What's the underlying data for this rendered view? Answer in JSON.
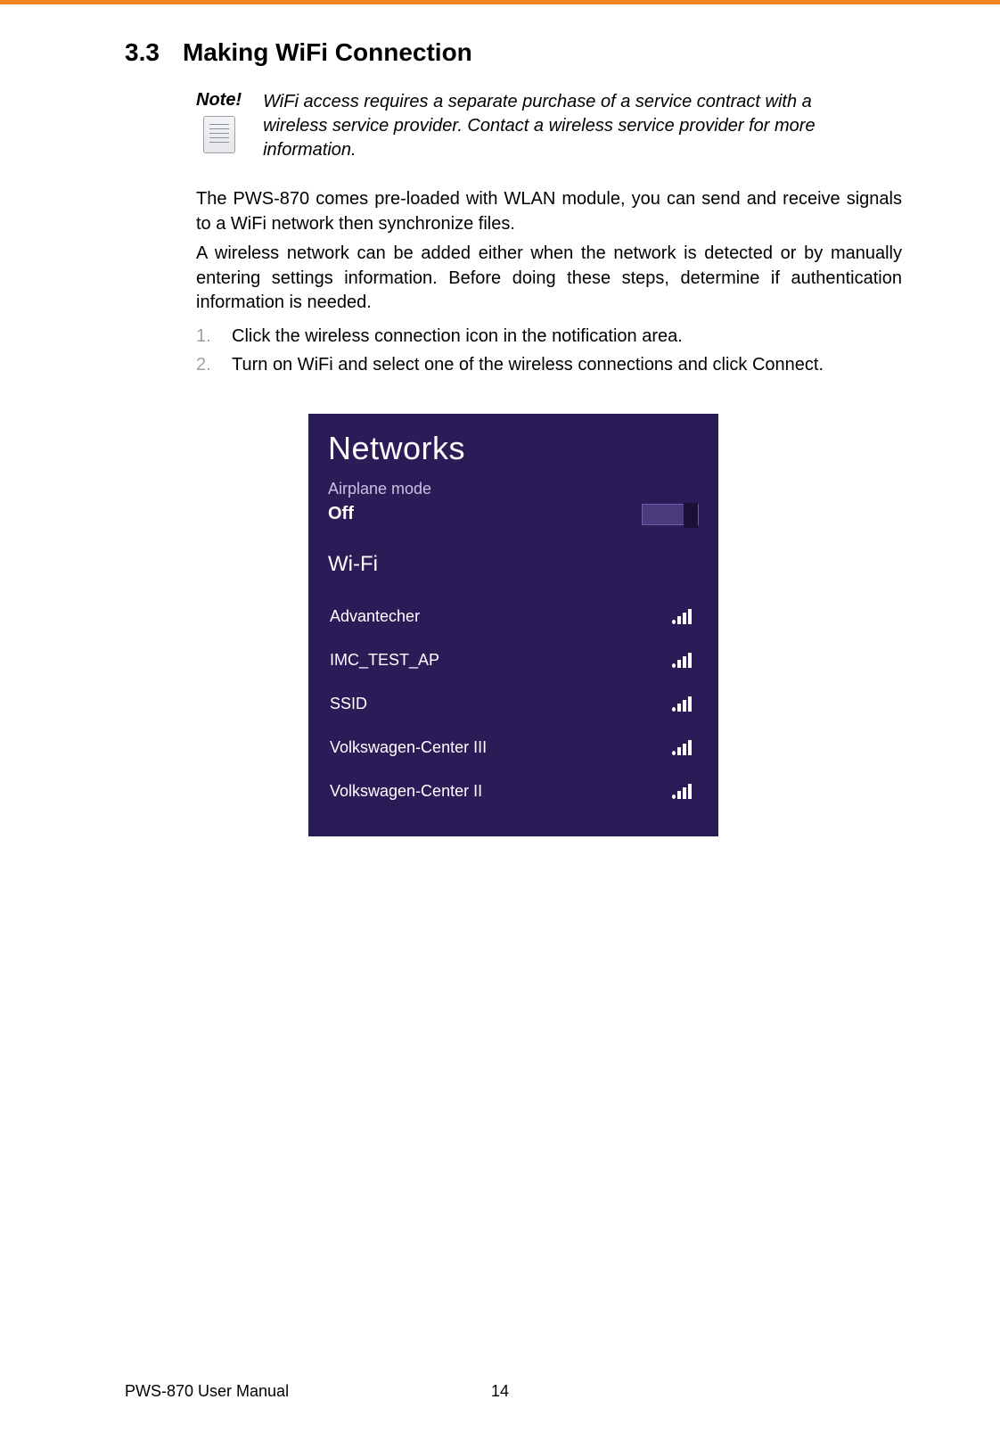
{
  "colors": {
    "top_bar": "#f58220",
    "panel_bg": "#2b1b57",
    "panel_text": "#ffffff",
    "panel_sublabel": "#c9c1e4",
    "toggle_bg": "#4a3b7d",
    "toggle_border": "#6b5ca8",
    "toggle_knob": "#1a1038",
    "ol_number": "#9aa0a6"
  },
  "heading": {
    "number": "3.3",
    "title": "Making WiFi Connection"
  },
  "note": {
    "label": "Note!",
    "text": "WiFi access requires a separate purchase of a service contract with a wireless service provider. Contact a wireless service provider for more information."
  },
  "paragraphs": [
    "The PWS-870 comes pre-loaded with WLAN module, you can send and receive signals to a WiFi network then synchronize files.",
    "A wireless network can be added either when the network is detected or by manually entering settings information. Before doing these steps, determine if authentication information is needed."
  ],
  "steps": [
    {
      "n": "1.",
      "text": "Click the wireless connection icon in the notification area."
    },
    {
      "n": "2.",
      "text": "Turn on WiFi and select one of the wireless connections and click Connect."
    }
  ],
  "panel": {
    "title": "Networks",
    "airplane_label": "Airplane mode",
    "airplane_state": "Off",
    "wifi_section": "Wi-Fi",
    "items": [
      {
        "name": "Advantecher"
      },
      {
        "name": "IMC_TEST_AP"
      },
      {
        "name": "SSID"
      },
      {
        "name": "Volkswagen-Center III"
      },
      {
        "name": "Volkswagen-Center II"
      }
    ]
  },
  "footer": {
    "left": "PWS-870 User Manual",
    "page": "14"
  }
}
